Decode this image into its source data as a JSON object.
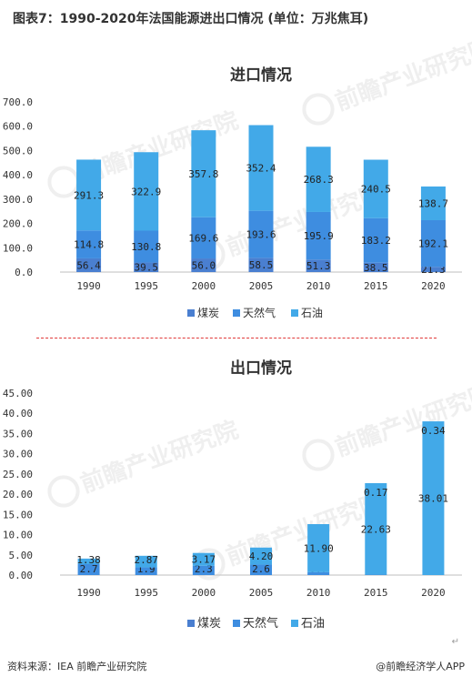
{
  "figure_title": "图表7：1990-2020年法国能源进出口情况 (单位：万兆焦耳)",
  "source": "资料来源：IEA 前瞻产业研究院",
  "credit": "@前瞻经济学人APP",
  "watermark": "前瞻产业研究院",
  "colors": {
    "coal": "#4a7fd0",
    "gas": "#3e8de0",
    "oil": "#42a9e8"
  },
  "chart_data": [
    {
      "type": "bar",
      "stacked": true,
      "title": "进口情况",
      "categories": [
        "1990",
        "1995",
        "2000",
        "2005",
        "2010",
        "2015",
        "2020"
      ],
      "series": [
        {
          "name": "煤炭",
          "values": [
            56.4,
            39.5,
            56.0,
            58.5,
            51.3,
            38.5,
            21.3
          ],
          "labels": [
            "56.4",
            "39.5",
            "56.0",
            "58.5",
            "51.3",
            "38.5",
            "21.3"
          ]
        },
        {
          "name": "天然气",
          "values": [
            114.8,
            130.8,
            169.6,
            193.6,
            195.9,
            183.2,
            192.1
          ],
          "labels": [
            "114.8",
            "130.8",
            "169.6",
            "193.6",
            "195.9",
            "183.2",
            "192.1"
          ]
        },
        {
          "name": "石油",
          "values": [
            291.3,
            322.9,
            357.8,
            352.4,
            268.3,
            240.5,
            138.7
          ],
          "labels": [
            "291.3",
            "322.9",
            "357.8",
            "352.4",
            "268.3",
            "240.5",
            "138.7"
          ]
        }
      ],
      "ylim": [
        0,
        700
      ],
      "yticks": [
        "0.0",
        "100.0",
        "200.0",
        "300.0",
        "400.0",
        "500.0",
        "600.0",
        "700.0"
      ],
      "legend_position": "bottom",
      "grid": false
    },
    {
      "type": "bar",
      "stacked": true,
      "title": "出口情况",
      "categories": [
        "1990",
        "1995",
        "2000",
        "2005",
        "2010",
        "2015",
        "2020"
      ],
      "series": [
        {
          "name": "煤炭",
          "values": [
            0,
            0,
            0,
            0,
            0,
            0,
            0
          ],
          "labels": [
            "",
            "",
            "",
            "",
            "",
            "",
            ""
          ]
        },
        {
          "name": "天然气",
          "values": [
            2.7,
            1.9,
            2.3,
            2.6,
            0.7,
            0.1,
            0.0
          ],
          "labels": [
            "2.7",
            "1.9",
            "2.3",
            "2.6",
            "0.7",
            "0.1",
            "0.0"
          ]
        },
        {
          "name": "石油",
          "values": [
            1.38,
            2.87,
            3.17,
            4.2,
            11.9,
            22.63,
            38.01
          ],
          "labels": [
            "1.38",
            "2.87",
            "3.17",
            "4.20",
            "11.90",
            "22.63",
            "38.01"
          ]
        }
      ],
      "extra_labels": [
        "",
        "",
        "",
        "",
        "",
        "0.17",
        "0.34"
      ],
      "ylim": [
        0,
        45
      ],
      "yticks": [
        "0.00",
        "5.00",
        "10.00",
        "15.00",
        "20.00",
        "25.00",
        "30.00",
        "35.00",
        "40.00",
        "45.00"
      ],
      "legend_position": "bottom",
      "grid": false
    }
  ]
}
